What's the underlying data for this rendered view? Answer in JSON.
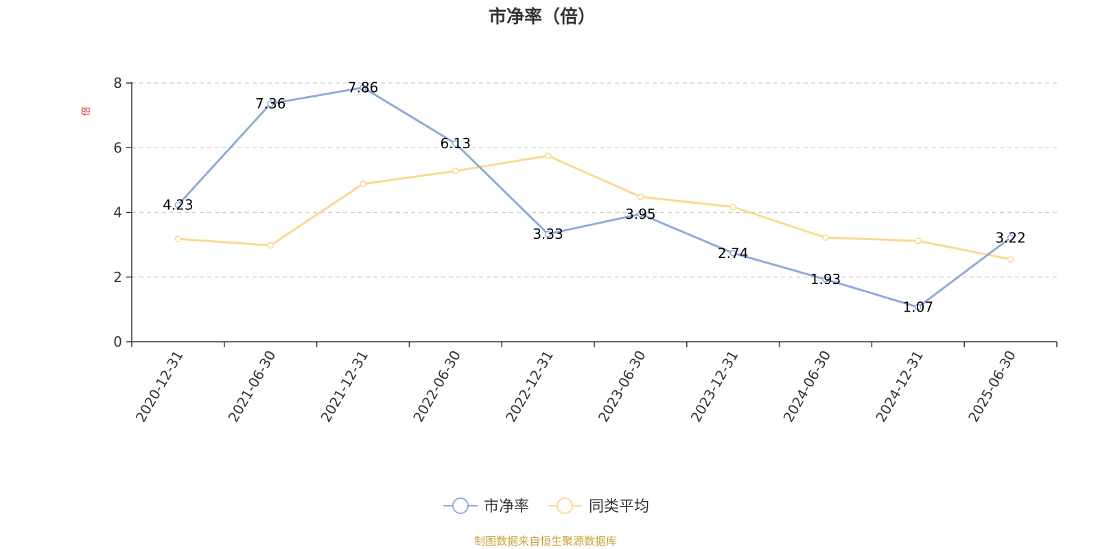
{
  "chart_data": {
    "type": "line",
    "title": "市净率（倍）",
    "ylabel": "倍",
    "ylim": [
      0,
      8
    ],
    "yticks": [
      0,
      2,
      4,
      6,
      8
    ],
    "categories": [
      "2020-12-31",
      "2021-06-30",
      "2021-12-31",
      "2022-06-30",
      "2022-12-31",
      "2023-06-30",
      "2023-12-31",
      "2024-06-30",
      "2024-12-31",
      "2025-06-30"
    ],
    "series": [
      {
        "name": "市净率",
        "color": "#8eaad9",
        "values": [
          4.23,
          7.36,
          7.86,
          6.13,
          3.33,
          3.95,
          2.74,
          1.93,
          1.07,
          3.22
        ],
        "labels": [
          "4.23",
          "7.36",
          "7.86",
          "6.13",
          "3.33",
          "3.95",
          "2.74",
          "1.93",
          "1.07",
          "3.22"
        ]
      },
      {
        "name": "同类平均",
        "color": "#fbd98f",
        "values": [
          3.18,
          2.98,
          4.88,
          5.28,
          5.75,
          4.48,
          4.17,
          3.22,
          3.12,
          2.55
        ]
      }
    ],
    "grid": true,
    "legend": "bottom-center",
    "ylabel_color": "#e03030"
  },
  "source": {
    "text": "制图数据来自恒生聚源数据库",
    "color": "#c9a33a"
  }
}
